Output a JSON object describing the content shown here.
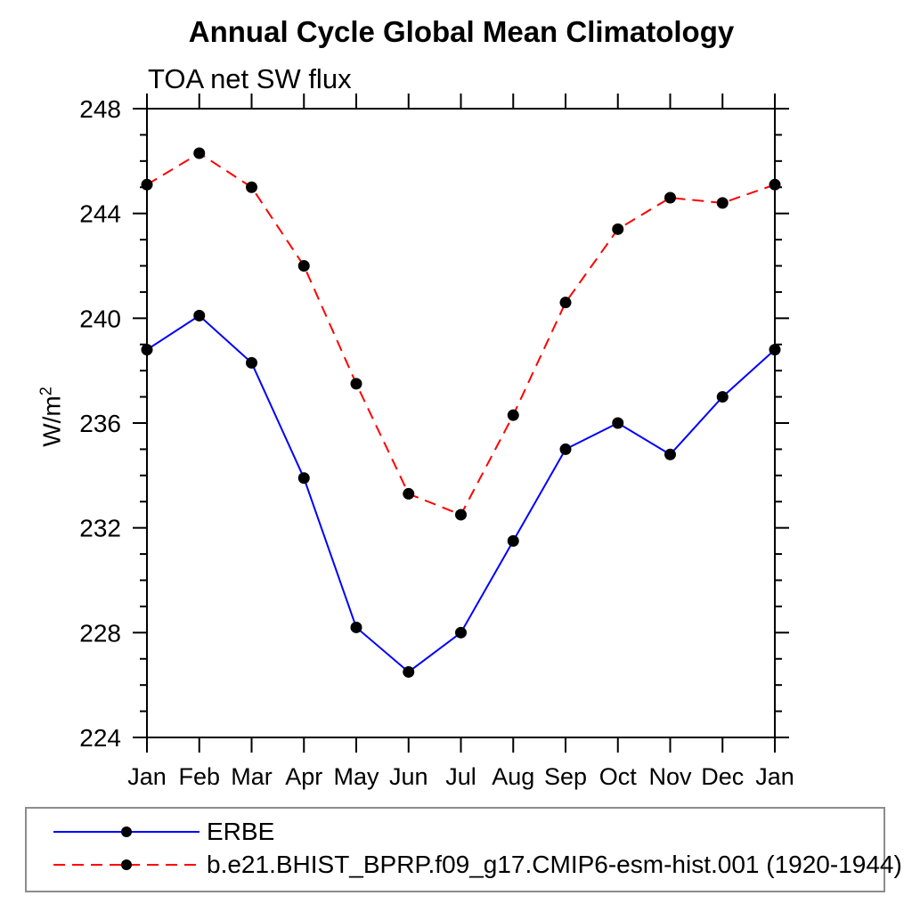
{
  "chart_data": {
    "type": "line",
    "title": "Annual Cycle Global Mean Climatology",
    "subtitle": "TOA net SW flux",
    "ylabel": "W/m",
    "ylabel_superscript": "2",
    "xlabel": "",
    "categories": [
      "Jan",
      "Feb",
      "Mar",
      "Apr",
      "May",
      "Jun",
      "Jul",
      "Aug",
      "Sep",
      "Oct",
      "Nov",
      "Dec",
      "Jan"
    ],
    "series": [
      {
        "name": "ERBE",
        "line_color": "#0000ff",
        "line_style": "solid",
        "marker": "filled-circle",
        "marker_color": "#000000",
        "values": [
          238.8,
          240.1,
          238.3,
          233.9,
          228.2,
          226.5,
          228.0,
          231.5,
          235.0,
          236.0,
          234.8,
          237.0,
          238.8
        ]
      },
      {
        "name": "b.e21.BHIST_BPRP.f09_g17.CMIP6-esm-hist.001 (1920-1944)",
        "line_color": "#ff0000",
        "line_style": "dashed",
        "marker": "filled-circle",
        "marker_color": "#000000",
        "values": [
          245.1,
          246.3,
          245.0,
          242.0,
          237.5,
          233.3,
          232.5,
          236.3,
          240.6,
          243.4,
          244.6,
          244.4,
          245.1
        ]
      }
    ],
    "ylim": [
      224,
      248
    ],
    "yticks_major": [
      224,
      228,
      232,
      236,
      240,
      244,
      248
    ],
    "ytick_minor_step": 1,
    "grid": false,
    "legend_position": "bottom",
    "axis_color": "#000000",
    "background_color": "#ffffff"
  }
}
